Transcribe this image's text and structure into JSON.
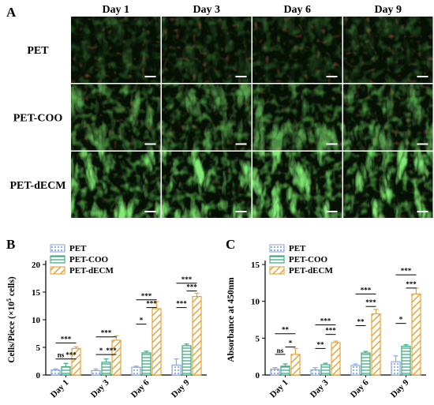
{
  "panels": {
    "a": "A",
    "b": "B",
    "c": "C"
  },
  "micrographs": {
    "columns": [
      "Day 1",
      "Day 3",
      "Day 6",
      "Day 9"
    ],
    "rows": [
      "PET",
      "PET-COO",
      "PET-dECM"
    ]
  },
  "colors": {
    "pet": "#8fa7de",
    "pet_coo": "#3daa80",
    "pet_decm": "#e8a43a",
    "stain_green": "#3cd22a",
    "stain_red": "#d23a1e"
  },
  "chart_data": [
    {
      "type": "bar",
      "panel": "B",
      "categories": [
        "Day 1",
        "Day 3",
        "Day 6",
        "Day 9"
      ],
      "ylabel_main": "Cells/Piece (×10",
      "ylabel_sup": "5",
      "ylabel_tail": " cells)",
      "ylim": [
        0,
        20
      ],
      "yticks": [
        "0",
        "5",
        "10",
        "15",
        "20"
      ],
      "legend_position": "top-left",
      "series": [
        {
          "name": "PET",
          "values": [
            0.9,
            0.8,
            1.4,
            1.8
          ],
          "errors": [
            0.2,
            0.3,
            0.2,
            1.1
          ]
        },
        {
          "name": "PET-COO",
          "values": [
            1.5,
            2.3,
            4.0,
            5.3
          ],
          "errors": [
            0.6,
            0.6,
            0.3,
            0.3
          ]
        },
        {
          "name": "PET-dECM",
          "values": [
            4.8,
            6.3,
            12.0,
            14.2
          ],
          "errors": [
            0.3,
            0.8,
            1.3,
            0.6
          ]
        }
      ],
      "significance": [
        {
          "group": 0,
          "from": 0,
          "to": 1,
          "label": "ns",
          "y": 2.9
        },
        {
          "group": 0,
          "from": 1,
          "to": 2,
          "label": "***",
          "y": 2.9
        },
        {
          "group": 0,
          "from": 0,
          "to": 2,
          "label": "***",
          "y": 5.8
        },
        {
          "group": 1,
          "from": 0,
          "to": 1,
          "label": "*",
          "y": 3.7
        },
        {
          "group": 1,
          "from": 1,
          "to": 2,
          "label": "***",
          "y": 3.7
        },
        {
          "group": 1,
          "from": 0,
          "to": 2,
          "label": "***",
          "y": 6.9
        },
        {
          "group": 2,
          "from": 0,
          "to": 1,
          "label": "*",
          "y": 9.2
        },
        {
          "group": 2,
          "from": 1,
          "to": 2,
          "label": "***",
          "y": 12.2
        },
        {
          "group": 2,
          "from": 0,
          "to": 2,
          "label": "***",
          "y": 13.6
        },
        {
          "group": 3,
          "from": 0,
          "to": 1,
          "label": "***",
          "y": 12.2
        },
        {
          "group": 3,
          "from": 1,
          "to": 2,
          "label": "***",
          "y": 15.2
        },
        {
          "group": 3,
          "from": 0,
          "to": 2,
          "label": "***",
          "y": 16.6
        }
      ]
    },
    {
      "type": "bar",
      "panel": "C",
      "categories": [
        "Day 1",
        "Day 3",
        "Day 6",
        "Day 9"
      ],
      "ylabel": "Absorbance at 450nm",
      "ylim": [
        0,
        15
      ],
      "yticks": [
        "0",
        "5",
        "10",
        "15"
      ],
      "legend_position": "top-left",
      "series": [
        {
          "name": "PET",
          "values": [
            0.8,
            0.7,
            1.3,
            1.8
          ],
          "errors": [
            0.2,
            0.3,
            0.2,
            0.8
          ]
        },
        {
          "name": "PET-COO",
          "values": [
            1.2,
            1.4,
            3.0,
            3.9
          ],
          "errors": [
            0.3,
            0.2,
            0.2,
            0.2
          ]
        },
        {
          "name": "PET-dECM",
          "values": [
            2.8,
            4.4,
            8.3,
            11.0
          ],
          "errors": [
            0.8,
            0.2,
            0.6,
            0.8
          ]
        }
      ],
      "significance": [
        {
          "group": 0,
          "from": 0,
          "to": 1,
          "label": "ns",
          "y": 2.8
        },
        {
          "group": 0,
          "from": 1,
          "to": 2,
          "label": "*",
          "y": 3.8
        },
        {
          "group": 0,
          "from": 0,
          "to": 2,
          "label": "**",
          "y": 5.6
        },
        {
          "group": 1,
          "from": 0,
          "to": 1,
          "label": "**",
          "y": 3.6
        },
        {
          "group": 1,
          "from": 1,
          "to": 2,
          "label": "***",
          "y": 5.5
        },
        {
          "group": 1,
          "from": 0,
          "to": 2,
          "label": "***",
          "y": 6.8
        },
        {
          "group": 2,
          "from": 0,
          "to": 1,
          "label": "**",
          "y": 6.7
        },
        {
          "group": 2,
          "from": 1,
          "to": 2,
          "label": "***",
          "y": 9.3
        },
        {
          "group": 2,
          "from": 0,
          "to": 2,
          "label": "***",
          "y": 11.0
        },
        {
          "group": 3,
          "from": 0,
          "to": 1,
          "label": "*",
          "y": 7.0
        },
        {
          "group": 3,
          "from": 1,
          "to": 2,
          "label": "***",
          "y": 11.8
        },
        {
          "group": 3,
          "from": 0,
          "to": 2,
          "label": "***",
          "y": 13.6
        }
      ]
    }
  ]
}
